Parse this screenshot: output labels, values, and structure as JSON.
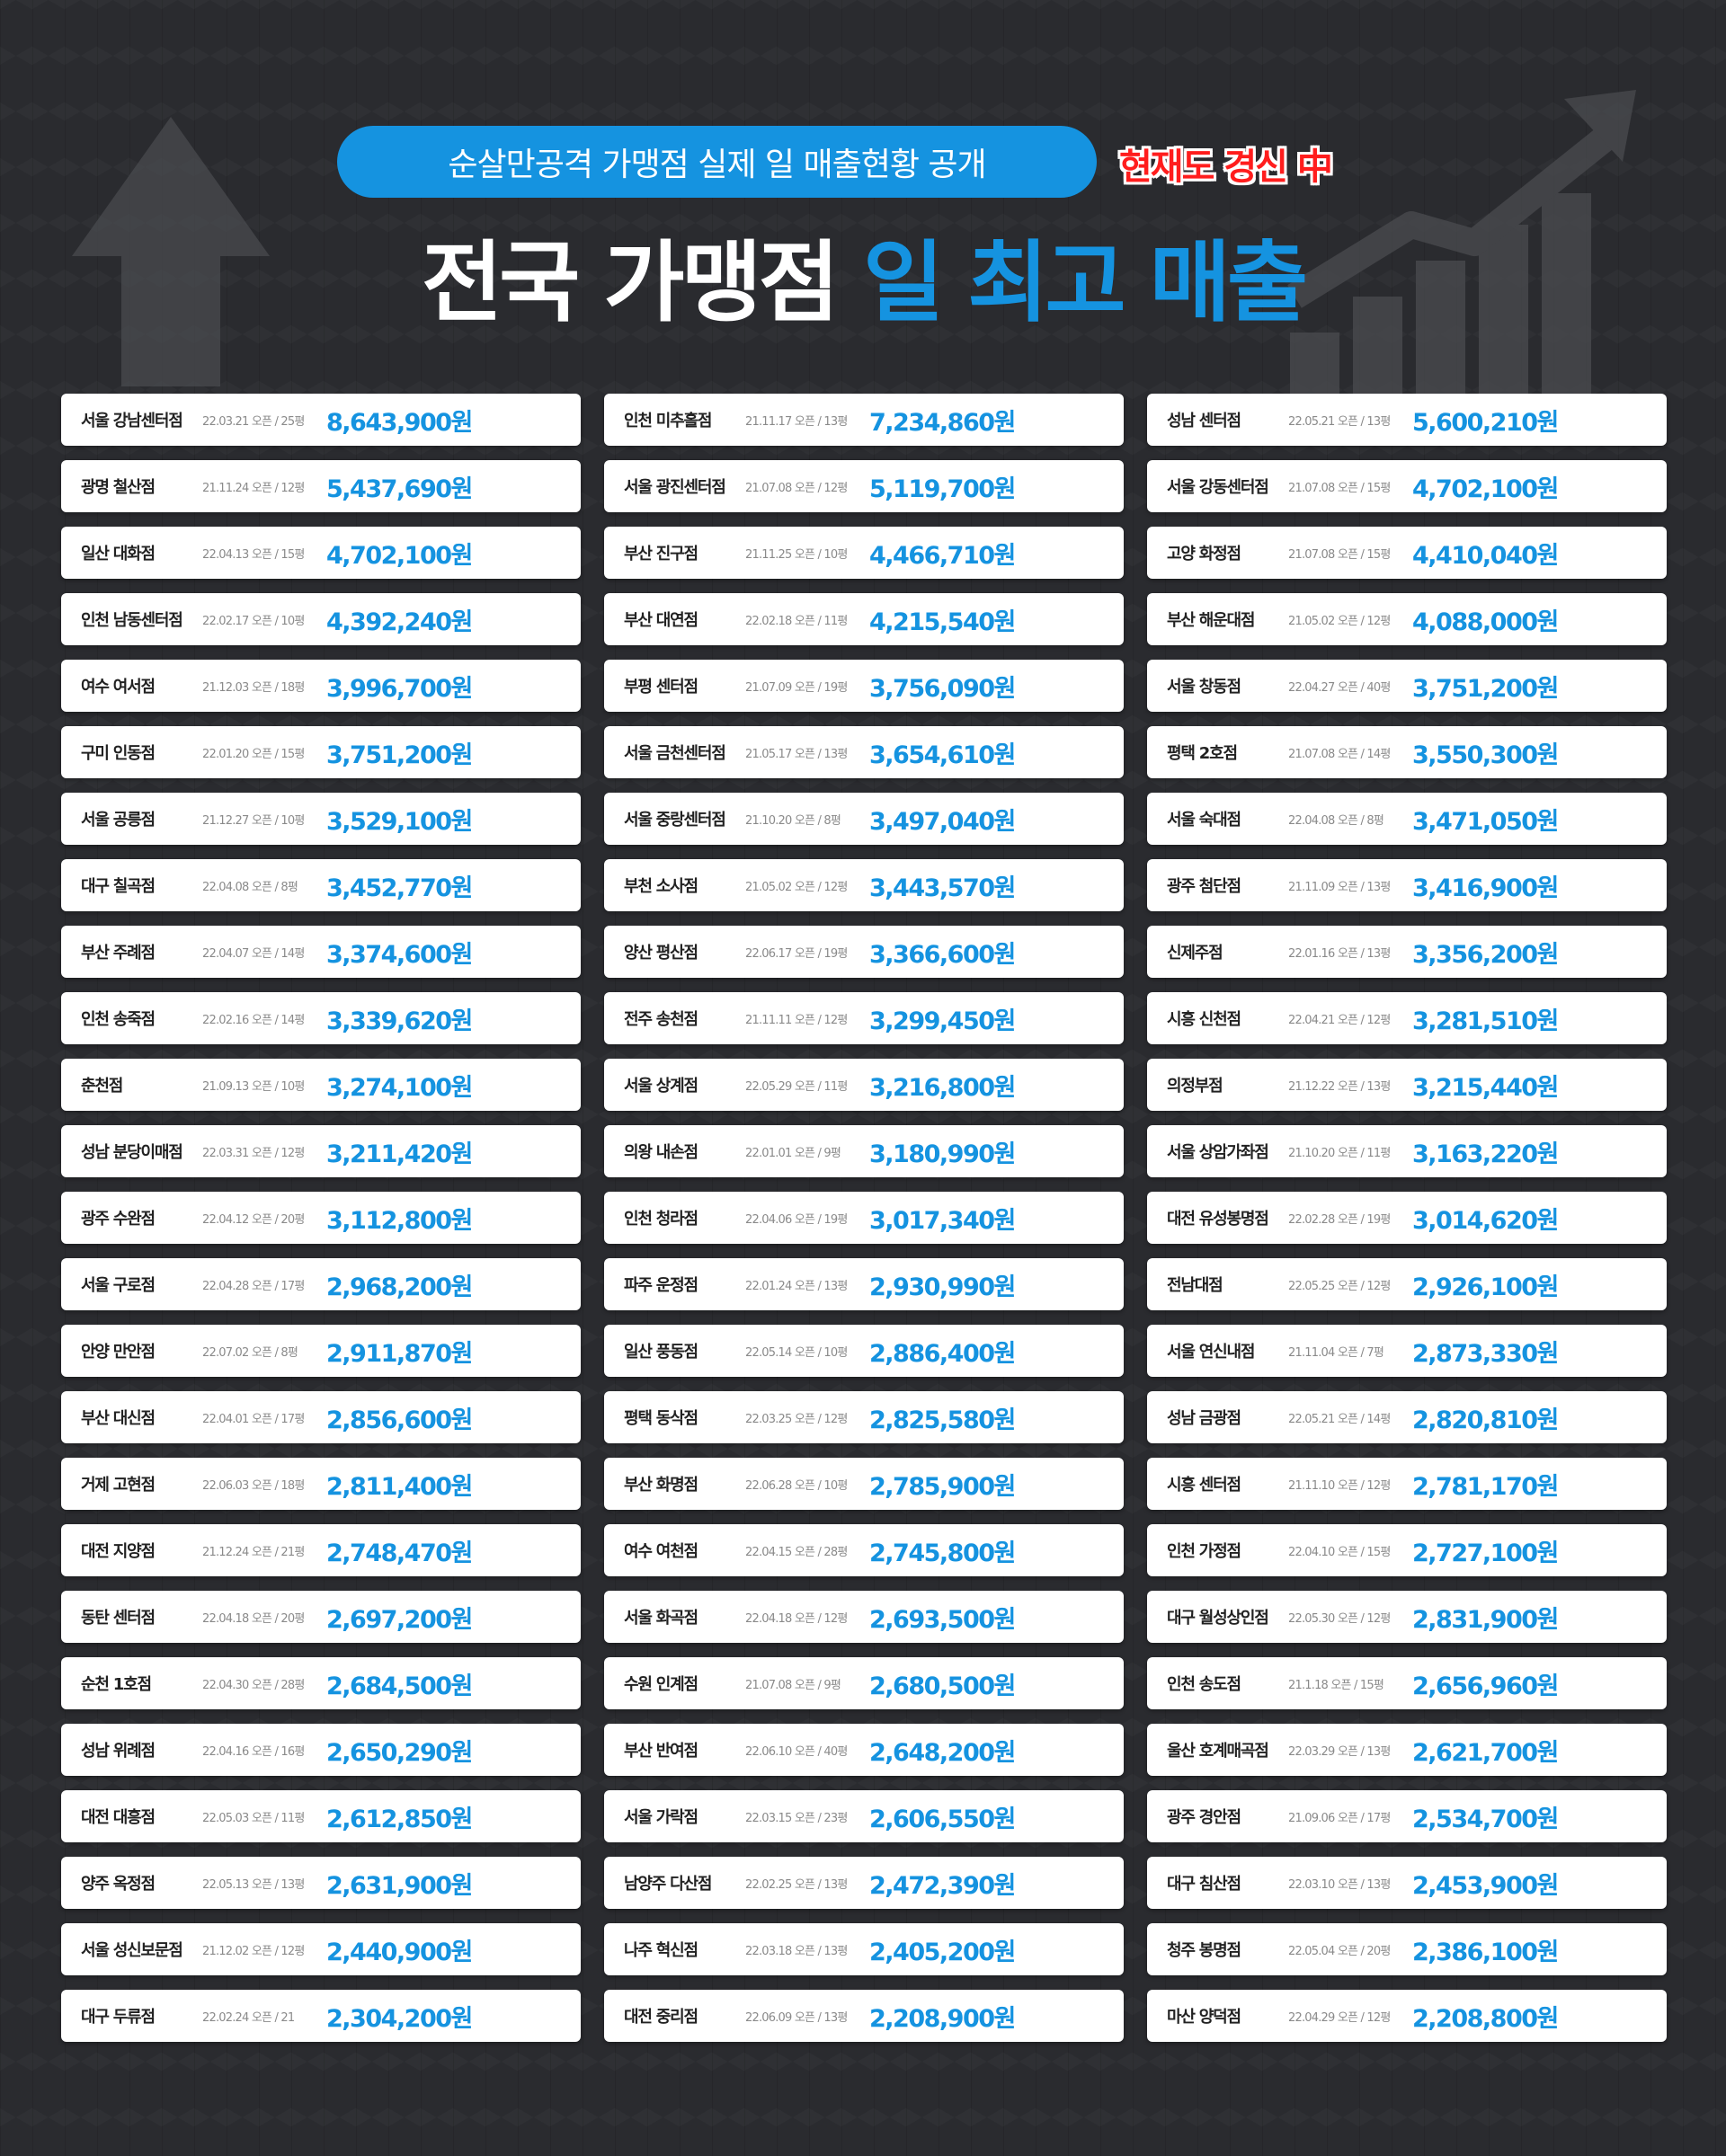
{
  "header": {
    "pill_text": "순살만공격 가맹점 실제 일 매출현황 공개",
    "live_badge": "현재도 경신 中",
    "title_white": "전국 가맹점",
    "title_blue": "일 최고 매출"
  },
  "icons": [
    "up-arrow-icon",
    "bar-chart-growth-icon"
  ],
  "colors": {
    "accent": "#1593e0",
    "background": "#2a2b2f",
    "live_red": "#ff1d1d"
  },
  "stores": [
    [
      {
        "name": "서울 강남센터점",
        "meta": "22.03.21 오픈 / 25평",
        "sales": "8,643,900원"
      },
      {
        "name": "광명 철산점",
        "meta": "21.11.24 오픈 / 12평",
        "sales": "5,437,690원"
      },
      {
        "name": "일산 대화점",
        "meta": "22.04.13 오픈 / 15평",
        "sales": "4,702,100원"
      },
      {
        "name": "인천 남동센터점",
        "meta": "22.02.17 오픈 / 10평",
        "sales": "4,392,240원"
      },
      {
        "name": "여수 여서점",
        "meta": "21.12.03 오픈 / 18평",
        "sales": "3,996,700원"
      },
      {
        "name": "구미 인동점",
        "meta": "22.01.20 오픈 / 15평",
        "sales": "3,751,200원"
      },
      {
        "name": "서울 공릉점",
        "meta": "21.12.27 오픈 / 10평",
        "sales": "3,529,100원"
      },
      {
        "name": "대구 칠곡점",
        "meta": "22.04.08 오픈 / 8평",
        "sales": "3,452,770원"
      },
      {
        "name": "부산 주례점",
        "meta": "22.04.07 오픈 / 14평",
        "sales": "3,374,600원"
      },
      {
        "name": "인천 송죽점",
        "meta": "22.02.16 오픈 / 14평",
        "sales": "3,339,620원"
      },
      {
        "name": "춘천점",
        "meta": "21.09.13 오픈 / 10평",
        "sales": "3,274,100원"
      },
      {
        "name": "성남 분당이매점",
        "meta": "22.03.31 오픈 / 12평",
        "sales": "3,211,420원"
      },
      {
        "name": "광주 수완점",
        "meta": "22.04.12 오픈 / 20평",
        "sales": "3,112,800원"
      },
      {
        "name": "서울 구로점",
        "meta": "22.04.28 오픈 / 17평",
        "sales": "2,968,200원"
      },
      {
        "name": "안양 만안점",
        "meta": "22.07.02 오픈 / 8평",
        "sales": "2,911,870원"
      },
      {
        "name": "부산 대신점",
        "meta": "22.04.01 오픈 / 17평",
        "sales": "2,856,600원"
      },
      {
        "name": "거제 고현점",
        "meta": "22.06.03 오픈 / 18평",
        "sales": "2,811,400원"
      },
      {
        "name": "대전 지양점",
        "meta": "21.12.24 오픈 / 21평",
        "sales": "2,748,470원"
      },
      {
        "name": "동탄 센터점",
        "meta": "22.04.18 오픈 / 20평",
        "sales": "2,697,200원"
      },
      {
        "name": "순천 1호점",
        "meta": "22.04.30 오픈 / 28평",
        "sales": "2,684,500원"
      },
      {
        "name": "성남 위례점",
        "meta": "22.04.16 오픈 / 16평",
        "sales": "2,650,290원"
      },
      {
        "name": "대전 대흥점",
        "meta": "22.05.03 오픈 / 11평",
        "sales": "2,612,850원"
      },
      {
        "name": "양주 옥정점",
        "meta": "22.05.13 오픈 / 13평",
        "sales": "2,631,900원"
      },
      {
        "name": "서울 성신보문점",
        "meta": "21.12.02 오픈 / 12평",
        "sales": "2,440,900원"
      },
      {
        "name": "대구 두류점",
        "meta": "22.02.24 오픈 / 21",
        "sales": "2,304,200원"
      }
    ],
    [
      {
        "name": "인천 미추홀점",
        "meta": "21.11.17 오픈 / 13평",
        "sales": "7,234,860원"
      },
      {
        "name": "서울 광진센터점",
        "meta": "21.07.08 오픈 / 12평",
        "sales": "5,119,700원"
      },
      {
        "name": "부산 진구점",
        "meta": "21.11.25 오픈 / 10평",
        "sales": "4,466,710원"
      },
      {
        "name": "부산 대연점",
        "meta": "22.02.18 오픈 / 11평",
        "sales": "4,215,540원"
      },
      {
        "name": "부평 센터점",
        "meta": "21.07.09 오픈 / 19평",
        "sales": "3,756,090원"
      },
      {
        "name": "서울 금천센터점",
        "meta": "21.05.17 오픈 / 13평",
        "sales": "3,654,610원"
      },
      {
        "name": "서울 중랑센터점",
        "meta": "21.10.20 오픈 / 8평",
        "sales": "3,497,040원"
      },
      {
        "name": "부천 소사점",
        "meta": "21.05.02 오픈 / 12평",
        "sales": "3,443,570원"
      },
      {
        "name": "양산 평산점",
        "meta": "22.06.17 오픈 / 19평",
        "sales": "3,366,600원"
      },
      {
        "name": "전주 송천점",
        "meta": "21.11.11 오픈 / 12평",
        "sales": "3,299,450원"
      },
      {
        "name": "서울 상계점",
        "meta": "22.05.29 오픈 / 11평",
        "sales": "3,216,800원"
      },
      {
        "name": "의왕 내손점",
        "meta": "22.01.01 오픈 / 9평",
        "sales": "3,180,990원"
      },
      {
        "name": "인천 청라점",
        "meta": "22.04.06 오픈 / 19평",
        "sales": "3,017,340원"
      },
      {
        "name": "파주 운정점",
        "meta": "22.01.24 오픈 / 13평",
        "sales": "2,930,990원"
      },
      {
        "name": "일산 풍동점",
        "meta": "22.05.14 오픈 / 10평",
        "sales": "2,886,400원"
      },
      {
        "name": "평택 동삭점",
        "meta": "22.03.25 오픈 / 12평",
        "sales": "2,825,580원"
      },
      {
        "name": "부산 화명점",
        "meta": "22.06.28 오픈 / 10평",
        "sales": "2,785,900원"
      },
      {
        "name": "여수 여천점",
        "meta": "22.04.15 오픈 / 28평",
        "sales": "2,745,800원"
      },
      {
        "name": "서울 화곡점",
        "meta": "22.04.18 오픈 / 12평",
        "sales": "2,693,500원"
      },
      {
        "name": "수원 인계점",
        "meta": "21.07.08 오픈 / 9평",
        "sales": "2,680,500원"
      },
      {
        "name": "부산 반여점",
        "meta": "22.06.10 오픈 / 40평",
        "sales": "2,648,200원"
      },
      {
        "name": "서울 가락점",
        "meta": "22.03.15 오픈 / 23평",
        "sales": "2,606,550원"
      },
      {
        "name": "남양주 다산점",
        "meta": "22.02.25 오픈 / 13평",
        "sales": "2,472,390원"
      },
      {
        "name": "나주 혁신점",
        "meta": "22.03.18 오픈 / 13평",
        "sales": "2,405,200원"
      },
      {
        "name": "대전 중리점",
        "meta": "22.06.09 오픈 / 13평",
        "sales": "2,208,900원"
      }
    ],
    [
      {
        "name": "성남 센터점",
        "meta": "22.05.21 오픈 / 13평",
        "sales": "5,600,210원"
      },
      {
        "name": "서울 강동센터점",
        "meta": "21.07.08 오픈 / 15평",
        "sales": "4,702,100원"
      },
      {
        "name": "고양 화정점",
        "meta": "21.07.08 오픈 / 15평",
        "sales": "4,410,040원"
      },
      {
        "name": "부산 해운대점",
        "meta": "21.05.02 오픈 / 12평",
        "sales": "4,088,000원"
      },
      {
        "name": "서울 창동점",
        "meta": "22.04.27 오픈 / 40평",
        "sales": "3,751,200원"
      },
      {
        "name": "평택 2호점",
        "meta": "21.07.08 오픈 / 14평",
        "sales": "3,550,300원"
      },
      {
        "name": "서울 숙대점",
        "meta": "22.04.08 오픈 / 8평",
        "sales": "3,471,050원"
      },
      {
        "name": "광주 첨단점",
        "meta": "21.11.09 오픈 / 13평",
        "sales": "3,416,900원"
      },
      {
        "name": "신제주점",
        "meta": "22.01.16 오픈 / 13평",
        "sales": "3,356,200원"
      },
      {
        "name": "시흥 신천점",
        "meta": "22.04.21 오픈 / 12평",
        "sales": "3,281,510원"
      },
      {
        "name": "의정부점",
        "meta": "21.12.22 오픈 / 13평",
        "sales": "3,215,440원"
      },
      {
        "name": "서울 상암가좌점",
        "meta": "21.10.20 오픈 / 11평",
        "sales": "3,163,220원"
      },
      {
        "name": "대전 유성봉명점",
        "meta": "22.02.28 오픈 / 19평",
        "sales": "3,014,620원"
      },
      {
        "name": "전남대점",
        "meta": "22.05.25 오픈 / 12평",
        "sales": "2,926,100원"
      },
      {
        "name": "서울 연신내점",
        "meta": "21.11.04 오픈 / 7평",
        "sales": "2,873,330원"
      },
      {
        "name": "성남 금광점",
        "meta": "22.05.21 오픈 / 14평",
        "sales": "2,820,810원"
      },
      {
        "name": "시흥 센터점",
        "meta": "21.11.10 오픈 / 12평",
        "sales": "2,781,170원"
      },
      {
        "name": "인천 가정점",
        "meta": "22.04.10 오픈 / 15평",
        "sales": "2,727,100원"
      },
      {
        "name": "대구 월성상인점",
        "meta": "22.05.30 오픈 / 12평",
        "sales": "2,831,900원"
      },
      {
        "name": "인천 송도점",
        "meta": "21.1.18 오픈 / 15평",
        "sales": "2,656,960원"
      },
      {
        "name": "울산 호계매곡점",
        "meta": "22.03.29 오픈 / 13평",
        "sales": "2,621,700원"
      },
      {
        "name": "광주 경안점",
        "meta": "21.09.06 오픈 / 17평",
        "sales": "2,534,700원"
      },
      {
        "name": "대구 침산점",
        "meta": "22.03.10 오픈 / 13평",
        "sales": "2,453,900원"
      },
      {
        "name": "청주 봉명점",
        "meta": "22.05.04 오픈 / 20평",
        "sales": "2,386,100원"
      },
      {
        "name": "마산 양덕점",
        "meta": "22.04.29 오픈 / 12평",
        "sales": "2,208,800원"
      }
    ]
  ]
}
